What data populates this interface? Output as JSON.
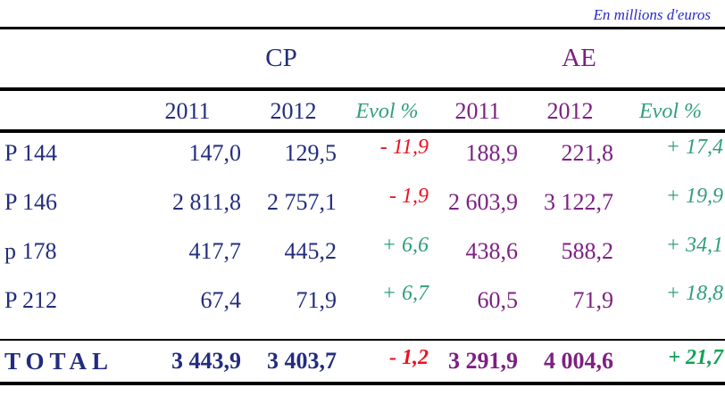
{
  "meta": {
    "unit_label": "En millions d'euros"
  },
  "table": {
    "groups": [
      {
        "label": "CP"
      },
      {
        "label": "AE"
      }
    ],
    "headers": {
      "cp_2011": "2011",
      "cp_2012": "2012",
      "cp_evol": "Evol %",
      "ae_2011": "2011",
      "ae_2012": "2012",
      "ae_evol": "Evol %"
    },
    "rows": [
      {
        "label": "P 144",
        "cp_2011": "147,0",
        "cp_2012": "129,5",
        "cp_evol": "- 11,9",
        "ae_2011": "188,9",
        "ae_2012": "221,8",
        "ae_evol": "+ 17,4"
      },
      {
        "label": "P 146",
        "cp_2011": "2 811,8",
        "cp_2012": "2 757,1",
        "cp_evol": "- 1,9",
        "ae_2011": "2 603,9",
        "ae_2012": "3 122,7",
        "ae_evol": "+ 19,9"
      },
      {
        "label": "p 178",
        "cp_2011": "417,7",
        "cp_2012": "445,2",
        "cp_evol": "+ 6,6",
        "ae_2011": "438,6",
        "ae_2012": "588,2",
        "ae_evol": "+ 34,1"
      },
      {
        "label": "P 212",
        "cp_2011": "67,4",
        "cp_2012": "71,9",
        "cp_evol": "+ 6,7",
        "ae_2011": "60,5",
        "ae_2012": "71,9",
        "ae_evol": "+ 18,8"
      }
    ],
    "total": {
      "label": "TOTAL",
      "cp_2011": "3 443,9",
      "cp_2012": "3 403,7",
      "cp_evol": "- 1,2",
      "ae_2011": "3 291,9",
      "ae_2012": "4 004,6",
      "ae_evol": "+ 21,7"
    }
  },
  "colors": {
    "navy": "#232C7E",
    "purple": "#7D2082",
    "title_blue": "#2B2BC8",
    "teal": "#2F9F7A",
    "green_strong": "#12A156",
    "red": "#EC1222",
    "line": "#000000"
  }
}
